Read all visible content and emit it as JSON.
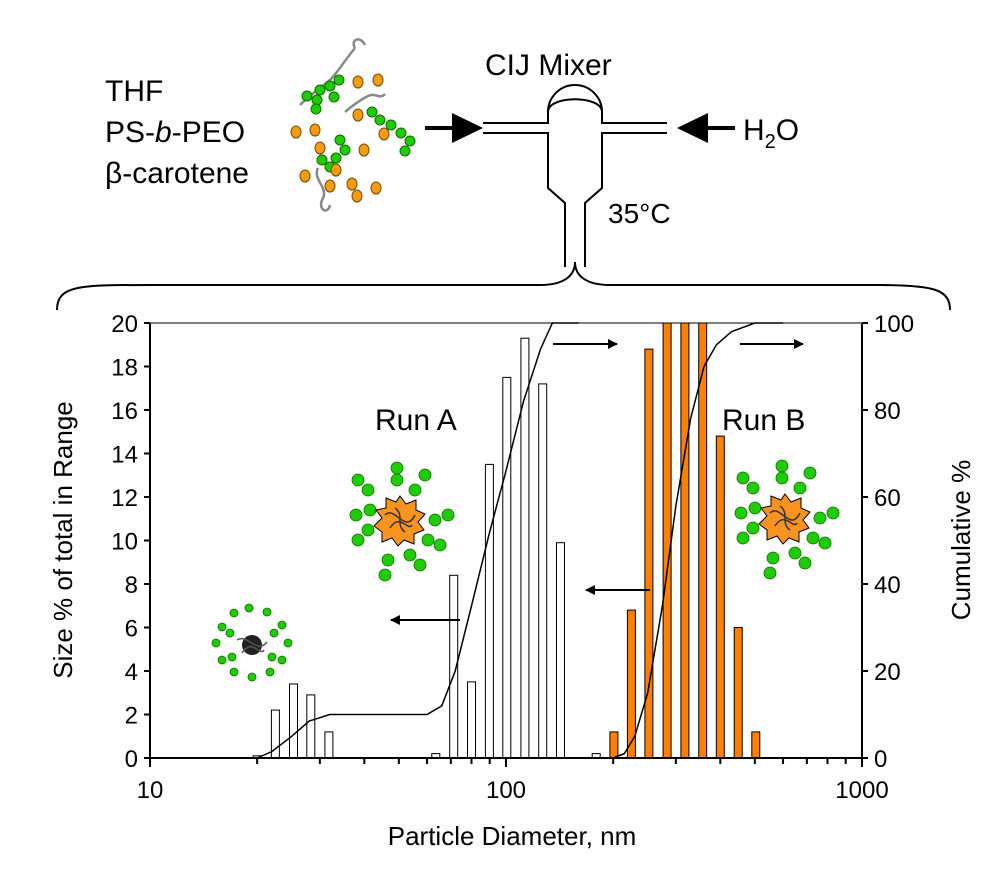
{
  "schematic": {
    "inlet_labels": [
      "THF",
      "PS-",
      "b",
      "-PEO",
      "β-carotene"
    ],
    "mixer_label": "CIJ Mixer",
    "water_label_main": "H",
    "water_label_sub": "2",
    "water_label_end": "O",
    "temperature": "35°C"
  },
  "chart_data": {
    "type": "bar",
    "x_scale": "log",
    "xlim": [
      10,
      1000
    ],
    "xlabel": "Particle Diameter, nm",
    "xticks": [
      "10",
      "100",
      "1000"
    ],
    "ylabel": "Size % of total in Range",
    "ylim": [
      0,
      20
    ],
    "yticks": [
      "0",
      "2",
      "4",
      "6",
      "8",
      "10",
      "12",
      "14",
      "16",
      "18",
      "20"
    ],
    "y2label": "Cumulative %",
    "y2lim": [
      0,
      100
    ],
    "y2ticks": [
      "0",
      "20",
      "40",
      "60",
      "80",
      "100"
    ],
    "grid": false,
    "annotations": [
      "Run A",
      "Run B"
    ],
    "series": [
      {
        "name": "Run A",
        "color": "#ffffff",
        "stroke": "#000000",
        "points": [
          {
            "x": 20.0,
            "y": 0.1
          },
          {
            "x": 22.5,
            "y": 2.2
          },
          {
            "x": 25.3,
            "y": 3.4
          },
          {
            "x": 28.3,
            "y": 2.9
          },
          {
            "x": 31.8,
            "y": 1.2
          },
          {
            "x": 63.5,
            "y": 0.2
          },
          {
            "x": 71.3,
            "y": 8.4
          },
          {
            "x": 80.0,
            "y": 3.5
          },
          {
            "x": 89.8,
            "y": 13.5
          },
          {
            "x": 100.5,
            "y": 17.5
          },
          {
            "x": 113.0,
            "y": 19.3
          },
          {
            "x": 126.8,
            "y": 17.2
          },
          {
            "x": 142.3,
            "y": 9.9
          },
          {
            "x": 179.2,
            "y": 0.2
          }
        ]
      },
      {
        "name": "Run B",
        "color": "#ff8000",
        "stroke": "#000000",
        "points": [
          {
            "x": 201.0,
            "y": 1.2
          },
          {
            "x": 225.0,
            "y": 6.8
          },
          {
            "x": 252.0,
            "y": 18.8
          },
          {
            "x": 283.5,
            "y": 20.0
          },
          {
            "x": 318.0,
            "y": 20.0
          },
          {
            "x": 357.0,
            "y": 20.0
          },
          {
            "x": 400.0,
            "y": 14.8
          },
          {
            "x": 449.0,
            "y": 6.0
          },
          {
            "x": 503.0,
            "y": 1.2
          }
        ]
      }
    ],
    "cumulative": [
      {
        "name": "Run A",
        "points": [
          [
            20,
            0
          ],
          [
            22,
            1.5
          ],
          [
            25,
            5
          ],
          [
            28,
            8.5
          ],
          [
            32,
            10
          ],
          [
            60,
            10
          ],
          [
            66,
            12
          ],
          [
            72,
            20
          ],
          [
            80,
            35
          ],
          [
            90,
            52
          ],
          [
            100,
            66
          ],
          [
            112,
            82
          ],
          [
            125,
            94
          ],
          [
            135,
            100
          ],
          [
            160,
            100
          ]
        ]
      },
      {
        "name": "Run B",
        "points": [
          [
            200,
            0
          ],
          [
            215,
            1
          ],
          [
            230,
            5
          ],
          [
            250,
            15
          ],
          [
            275,
            35
          ],
          [
            300,
            58
          ],
          [
            330,
            78
          ],
          [
            360,
            90
          ],
          [
            390,
            95
          ],
          [
            430,
            98
          ],
          [
            500,
            100
          ],
          [
            600,
            100
          ]
        ]
      }
    ]
  }
}
